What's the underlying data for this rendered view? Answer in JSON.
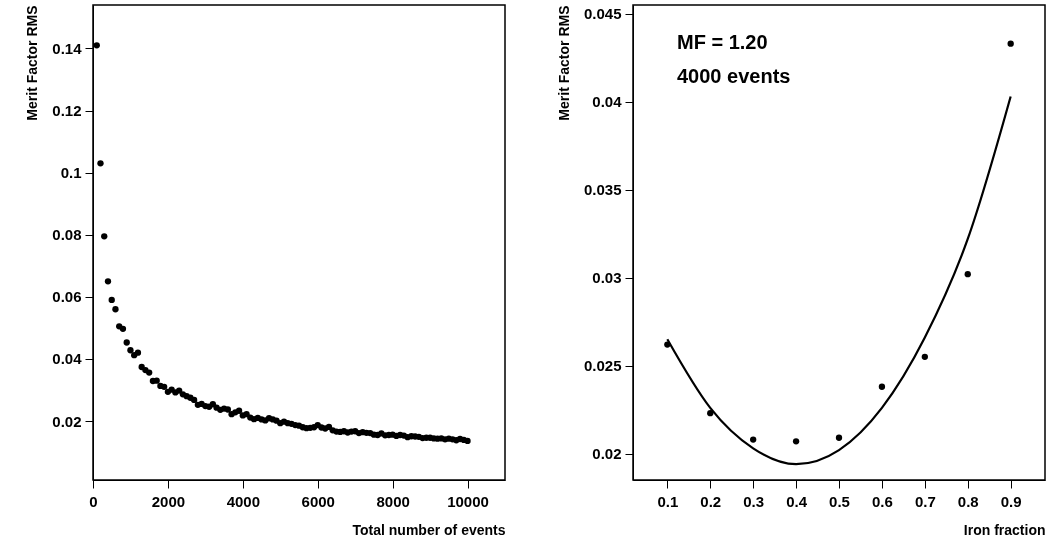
{
  "chart_data": [
    {
      "type": "scatter",
      "xlabel": "Total number of events",
      "ylabel": "Merit Factor RMS",
      "xlim": [
        0,
        11000
      ],
      "ylim": [
        0.001,
        0.154
      ],
      "xticks": [
        0,
        2000,
        4000,
        6000,
        8000,
        10000
      ],
      "yticks": [
        0.02,
        0.04,
        0.06,
        0.08,
        0.1,
        0.12,
        0.14
      ],
      "grid": false,
      "x": [
        100,
        200,
        300,
        400,
        500,
        600,
        700,
        800,
        900,
        1000,
        1100,
        1200,
        1300,
        1400,
        1500,
        1600,
        1700,
        1800,
        1900,
        2000,
        2100,
        2200,
        2300,
        2400,
        2500,
        2600,
        2700,
        2800,
        2900,
        3000,
        3100,
        3200,
        3300,
        3400,
        3500,
        3600,
        3700,
        3800,
        3900,
        4000,
        4100,
        4200,
        4300,
        4400,
        4500,
        4600,
        4700,
        4800,
        4900,
        5000,
        5100,
        5200,
        5300,
        5400,
        5500,
        5600,
        5700,
        5800,
        5900,
        6000,
        6100,
        6200,
        6300,
        6400,
        6500,
        6600,
        6700,
        6800,
        6900,
        7000,
        7100,
        7200,
        7300,
        7400,
        7500,
        7600,
        7700,
        7800,
        7900,
        8000,
        8100,
        8200,
        8300,
        8400,
        8500,
        8600,
        8700,
        8800,
        8900,
        9000,
        9100,
        9200,
        9300,
        9400,
        9500,
        9600,
        9700,
        9800,
        9900,
        10000
      ],
      "series": [
        {
          "color": "#000000",
          "marker": "circle",
          "values": [
            0.141,
            0.103,
            0.0795,
            0.065,
            0.059,
            0.056,
            0.0505,
            0.0497,
            0.0453,
            0.0428,
            0.0412,
            0.042,
            0.0374,
            0.0364,
            0.0356,
            0.0329,
            0.033,
            0.0313,
            0.031,
            0.0294,
            0.0301,
            0.0292,
            0.0298,
            0.0286,
            0.028,
            0.0275,
            0.0268,
            0.0252,
            0.0255,
            0.0248,
            0.0246,
            0.0254,
            0.0243,
            0.0236,
            0.024,
            0.0237,
            0.0222,
            0.0228,
            0.0233,
            0.0218,
            0.0222,
            0.0211,
            0.0206,
            0.021,
            0.0205,
            0.0202,
            0.0209,
            0.0205,
            0.0201,
            0.0193,
            0.0198,
            0.0193,
            0.0191,
            0.0187,
            0.0185,
            0.018,
            0.0177,
            0.0178,
            0.018,
            0.0187,
            0.0179,
            0.0176,
            0.0181,
            0.017,
            0.0166,
            0.0165,
            0.0167,
            0.0163,
            0.0166,
            0.0167,
            0.0161,
            0.0164,
            0.0162,
            0.0161,
            0.0156,
            0.0155,
            0.016,
            0.0154,
            0.0155,
            0.0156,
            0.0152,
            0.0155,
            0.0153,
            0.0148,
            0.0151,
            0.015,
            0.0149,
            0.0145,
            0.0146,
            0.0146,
            0.0144,
            0.0143,
            0.0144,
            0.0141,
            0.0143,
            0.0141,
            0.0138,
            0.0142,
            0.0139,
            0.0136
          ]
        }
      ]
    },
    {
      "type": "scatter",
      "xlabel": "Iron fraction",
      "ylabel": "Merit Factor RMS",
      "xlim": [
        0.02,
        0.98
      ],
      "ylim": [
        0.0185,
        0.0455
      ],
      "xticks": [
        0.1,
        0.2,
        0.3,
        0.4,
        0.5,
        0.6,
        0.7,
        0.8,
        0.9
      ],
      "yticks": [
        0.02,
        0.025,
        0.03,
        0.035,
        0.04,
        0.045
      ],
      "grid": false,
      "line_style": "solid",
      "annotations": [
        "MF = 1.20",
        "4000 events"
      ],
      "series": [
        {
          "color": "#000000",
          "marker": "circle",
          "x": [
            0.1,
            0.2,
            0.3,
            0.4,
            0.5,
            0.6,
            0.7,
            0.8,
            0.9
          ],
          "values": [
            0.0262,
            0.0223,
            0.0208,
            0.0207,
            0.0209,
            0.0238,
            0.0255,
            0.0302,
            0.0433
          ]
        },
        {
          "type": "line",
          "color": "#000000",
          "x": [
            0.1,
            0.2,
            0.3,
            0.4,
            0.5,
            0.6,
            0.7,
            0.8,
            0.9
          ],
          "values": [
            0.0265,
            0.0226,
            0.0203,
            0.0194,
            0.0202,
            0.0226,
            0.0266,
            0.0322,
            0.0403
          ]
        }
      ]
    }
  ]
}
